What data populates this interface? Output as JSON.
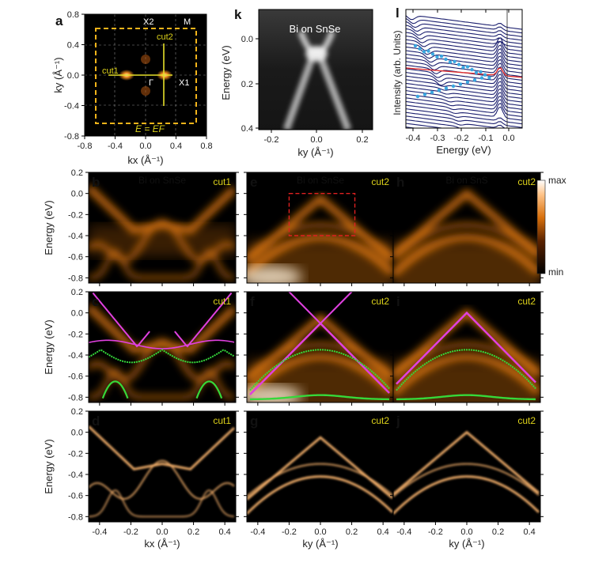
{
  "panel_letters": [
    "a",
    "b",
    "c",
    "d",
    "e",
    "f",
    "g",
    "h",
    "i",
    "j",
    "k",
    "l"
  ],
  "panel_a": {
    "xlabel": "kx (Å⁻¹)",
    "ylabel": "ky (Å⁻¹)",
    "xticks": [
      "-0.8",
      "-0.4",
      "0.0",
      "0.4",
      "0.8"
    ],
    "yticks": [
      "0.8",
      "0.4",
      "0.0",
      "-0.4",
      "-0.8"
    ],
    "points": {
      "gamma": "Γ",
      "x1": "X1",
      "x2": "X2",
      "m": "M"
    },
    "cuts": [
      "cut1",
      "cut2"
    ],
    "energy_label": "E = EF"
  },
  "panel_k": {
    "title": "Bi on SnSe",
    "xlabel": "ky (Å⁻¹)",
    "ylabel": "Energy (eV)",
    "xticks": [
      "-0.2",
      "0.0",
      "0.2"
    ],
    "yticks": [
      "0.0",
      "0.2",
      "0.4"
    ]
  },
  "panel_l": {
    "xlabel": "Energy (eV)",
    "ylabel": "Intensity (arb. Units)",
    "xticks": [
      "-0.4",
      "-0.3",
      "-0.2",
      "-0.1",
      "0.0"
    ],
    "line_color": "#1b1f6e",
    "marker_color": "#3aa7e0",
    "highlight_color": "#e03030"
  },
  "grid": {
    "ylabel": "Energy (eV)",
    "yticks": [
      "0.2",
      "0.0",
      "-0.2",
      "-0.4",
      "-0.6",
      "-0.8"
    ],
    "xticks": [
      "-0.4",
      "-0.2",
      "0.0",
      "0.2",
      "0.4"
    ],
    "col_xlabels": [
      "kx (Å⁻¹)",
      "ky (Å⁻¹)",
      "ky (Å⁻¹)"
    ],
    "row_titles": {
      "b": "Bi on SnSe",
      "e": "Bi on SnSe",
      "h": "Bi on SnS"
    },
    "cut_labels": [
      "cut1",
      "cut2",
      "cut2"
    ],
    "colorbar": {
      "max": "max",
      "min": "min"
    },
    "overlay_colors": {
      "magenta": "#e040e0",
      "green": "#36d83a"
    }
  }
}
